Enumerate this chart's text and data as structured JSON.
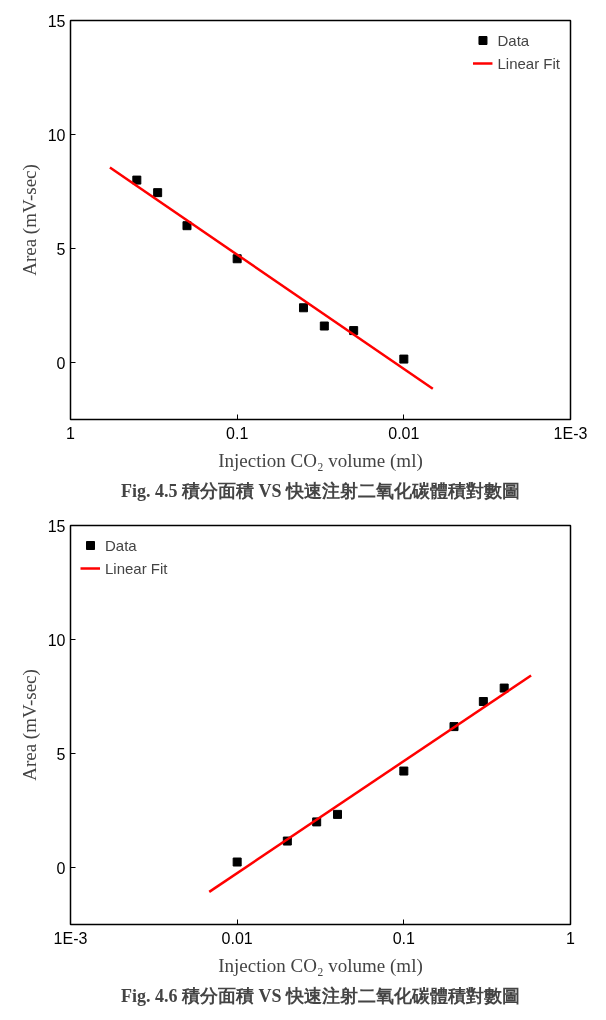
{
  "chart_data": [
    {
      "type": "scatter",
      "xlabel": "Injection CO₂ volume (ml)",
      "ylabel": "Area (mV-sec)",
      "log": "x",
      "legend": "top right",
      "xlim": [
        1,
        0.001
      ],
      "xticks": [
        1,
        0.1,
        0.01,
        {
          "value": 0.001,
          "label": "1E-3"
        }
      ],
      "ylim": [
        -2.5,
        15
      ],
      "yticks": [
        0,
        5,
        10,
        15
      ],
      "series": [
        {
          "name": "Data",
          "marker": "square",
          "color": "#000000",
          "x": [
            0.4,
            0.3,
            0.2,
            0.1,
            0.04,
            0.03,
            0.02,
            0.01
          ],
          "values": [
            8.0,
            7.45,
            6.0,
            4.55,
            2.4,
            1.6,
            1.4,
            0.15
          ]
        },
        {
          "name": "Linear Fit",
          "type": "line",
          "marker": "none",
          "color": "#ff0000",
          "x": [
            0.58,
            0.0067
          ],
          "values": [
            8.55,
            -1.15
          ]
        }
      ],
      "annotations": [
        "Fig. 4.5 積分面積 VS 快速注射二氧化碳體積對數圖"
      ]
    },
    {
      "type": "scatter",
      "xlabel": "Injection CO₂ volume (ml)",
      "ylabel": "Area (mV-sec)",
      "log": "x",
      "legend": "top left",
      "xlim": [
        0.001,
        1
      ],
      "xticks": [
        {
          "value": 0.001,
          "label": "1E-3"
        },
        0.01,
        0.1,
        1
      ],
      "ylim": [
        -2.5,
        15
      ],
      "yticks": [
        0,
        5,
        10,
        15
      ],
      "series": [
        {
          "name": "Data",
          "marker": "square",
          "color": "#000000",
          "x": [
            0.01,
            0.02,
            0.03,
            0.04,
            0.1,
            0.2,
            0.3,
            0.4
          ],
          "values": [
            0.24,
            1.16,
            2.0,
            2.33,
            4.23,
            6.18,
            7.28,
            7.87
          ]
        },
        {
          "name": "Linear Fit",
          "type": "line",
          "marker": "none",
          "color": "#ff0000",
          "x": [
            0.0068,
            0.58
          ],
          "values": [
            -1.07,
            8.42
          ]
        }
      ],
      "annotations": [
        "Fig. 4.6 積分面積 VS 快速注射二氧化碳體積對數圖"
      ]
    }
  ]
}
